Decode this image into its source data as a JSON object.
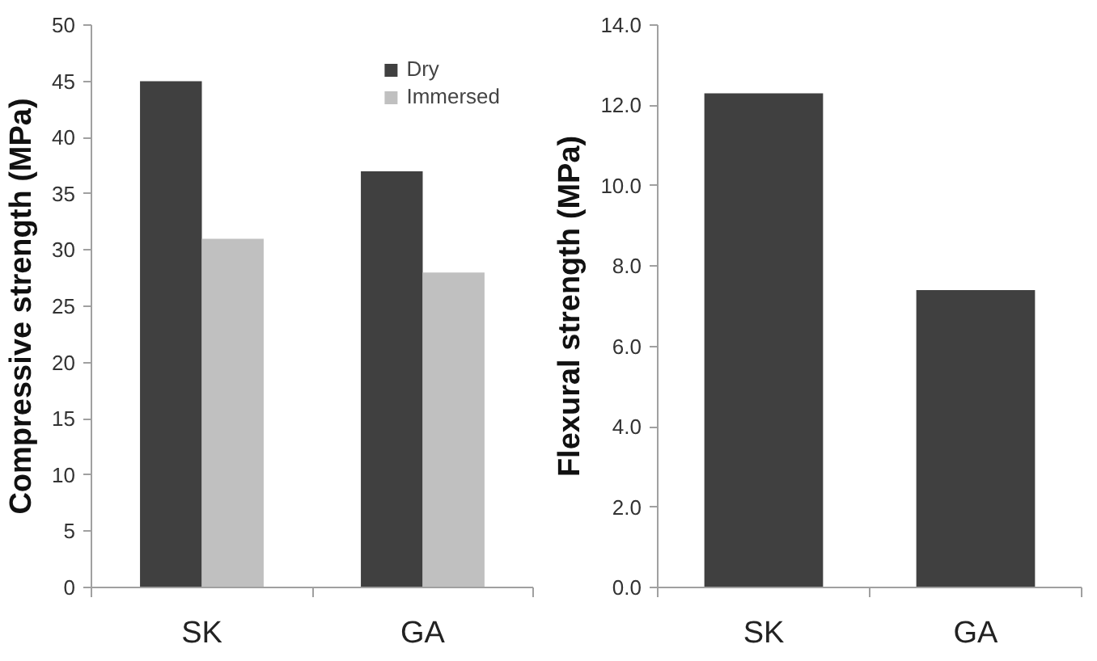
{
  "chart_data": [
    {
      "type": "bar",
      "categories": [
        "SK",
        "GA"
      ],
      "ylabel": "Compressive strength (MPa)",
      "ylim": [
        0,
        50
      ],
      "yticks": [
        0,
        5,
        10,
        15,
        20,
        25,
        30,
        35,
        40,
        45,
        50
      ],
      "grid": false,
      "legend": "top right",
      "series": [
        {
          "name": "Dry",
          "color": "#404040",
          "values": [
            45,
            37
          ]
        },
        {
          "name": "Immersed",
          "color": "#c0c0c0",
          "values": [
            31,
            28
          ]
        }
      ]
    },
    {
      "type": "bar",
      "categories": [
        "SK",
        "GA"
      ],
      "ylabel": "Flexural strength (MPa)",
      "ylim": [
        0,
        14
      ],
      "yticks": [
        {
          "value": 0,
          "label": "0.0"
        },
        {
          "value": 2,
          "label": "2.0"
        },
        {
          "value": 4,
          "label": "4.0"
        },
        {
          "value": 6,
          "label": "6.0"
        },
        {
          "value": 8,
          "label": "8.0"
        },
        {
          "value": 10,
          "label": "10.0"
        },
        {
          "value": 12,
          "label": "12.0"
        },
        {
          "value": 14,
          "label": "14.0"
        }
      ],
      "grid": false,
      "series": [
        {
          "color": "#404040",
          "values": [
            12.3,
            7.4
          ]
        }
      ]
    }
  ]
}
